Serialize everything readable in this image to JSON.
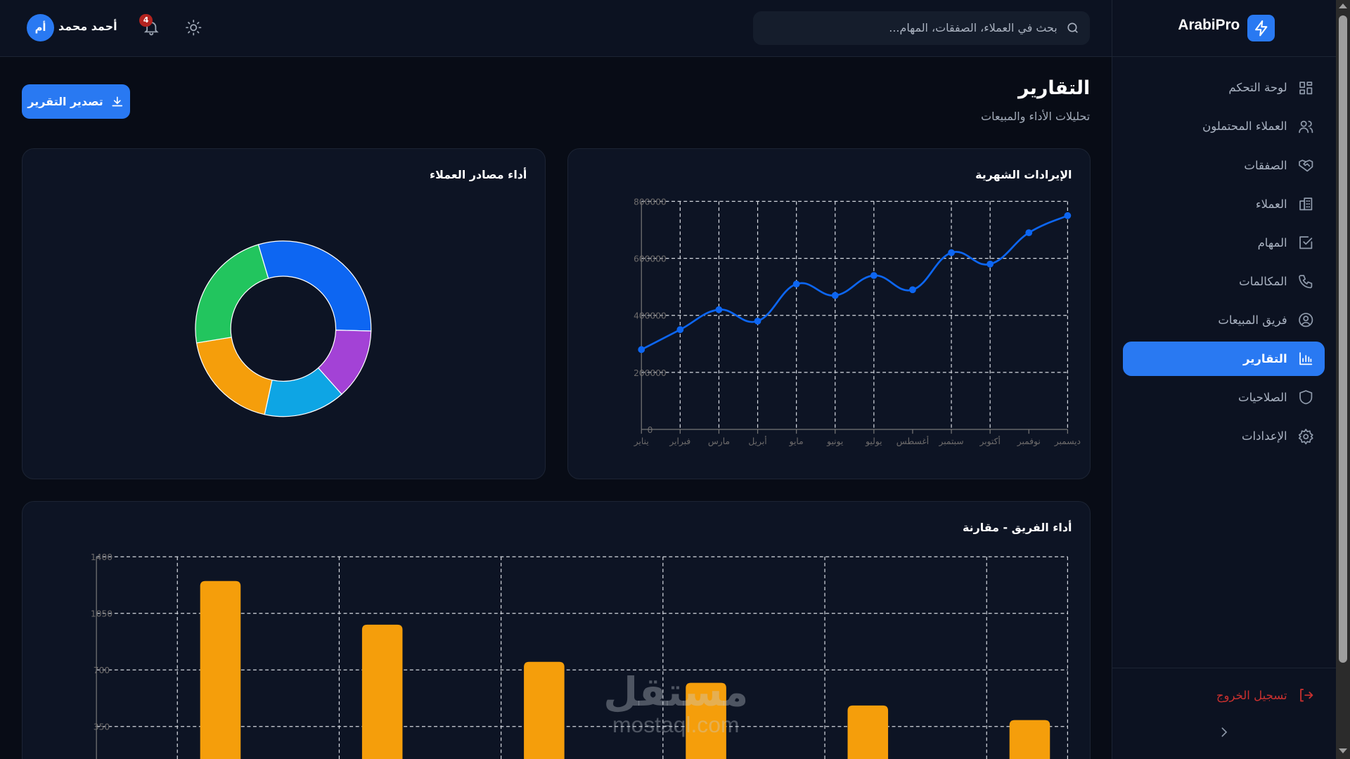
{
  "app": {
    "name": "ArabiPro",
    "logo_icon": "lightning-icon",
    "accent": "#2979f2"
  },
  "sidebar": {
    "items": [
      {
        "label": "لوحة التحكم",
        "icon": "dashboard-grid-icon",
        "active": false
      },
      {
        "label": "العملاء المحتملون",
        "icon": "users-icon",
        "active": false
      },
      {
        "label": "الصفقات",
        "icon": "handshake-icon",
        "active": false
      },
      {
        "label": "العملاء",
        "icon": "building-icon",
        "active": false
      },
      {
        "label": "المهام",
        "icon": "checkbox-icon",
        "active": false
      },
      {
        "label": "المكالمات",
        "icon": "phone-icon",
        "active": false
      },
      {
        "label": "فريق المبيعات",
        "icon": "user-circle-icon",
        "active": false
      },
      {
        "label": "التقارير",
        "icon": "bar-chart-icon",
        "active": true
      },
      {
        "label": "الصلاحيات",
        "icon": "shield-icon",
        "active": false
      },
      {
        "label": "الإعدادات",
        "icon": "gear-icon",
        "active": false
      }
    ],
    "logout_label": "تسجيل الخروج",
    "logout_color": "#c8302f"
  },
  "header": {
    "search_placeholder": "بحث في العملاء، الصفقات، المهام...",
    "notifications_count": "4",
    "user_name": "أحمد محمد",
    "avatar_initials": "أم"
  },
  "page": {
    "title": "التقارير",
    "subtitle": "تحليلات الأداء والمبيعات",
    "export_label": "تصدير التقرير"
  },
  "watermark": {
    "arabic": "مستقل",
    "latin": "mostaql.com"
  },
  "chart_data": [
    {
      "type": "line",
      "title": "الإيرادات الشهرية",
      "categories": [
        "يناير",
        "فبراير",
        "مارس",
        "أبريل",
        "مايو",
        "يونيو",
        "يوليو",
        "أغسطس",
        "سبتمبر",
        "أكتوبر",
        "نوفمبر",
        "ديسمبر"
      ],
      "values": [
        280000,
        350000,
        420000,
        380000,
        510000,
        470000,
        540000,
        490000,
        620000,
        580000,
        690000,
        750000
      ],
      "ylim": [
        0,
        800000
      ],
      "yticks": [
        "0",
        "200000",
        "400000",
        "600000",
        "800000"
      ],
      "color": "#0d66f2",
      "grid": true
    },
    {
      "type": "pie",
      "title": "أداء مصادر العملاء",
      "values": [
        30,
        13,
        15,
        19,
        23
      ],
      "colors": [
        "#0d66f2",
        "#a342d6",
        "#0ea5e4",
        "#f59e0b",
        "#22c55e"
      ],
      "donut": true
    },
    {
      "type": "bar",
      "title": "أداء الفريق - مقارنة",
      "values": [
        1250,
        980,
        750,
        620,
        480,
        390
      ],
      "ylim": [
        0,
        1400
      ],
      "yticks": [
        "350",
        "700",
        "1050",
        "1400"
      ],
      "color": "#f59e0b",
      "grid": true
    }
  ]
}
